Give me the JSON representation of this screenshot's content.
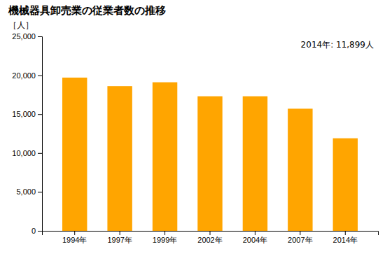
{
  "chart_data": {
    "type": "bar",
    "title": "機械器具卸売業の従業者数の推移",
    "ylabel": "［人］",
    "annotation": "2014年: 11,899人",
    "categories": [
      "1994年",
      "1997年",
      "1999年",
      "2002年",
      "2004年",
      "2007年",
      "2014年"
    ],
    "values": [
      19700,
      18600,
      19100,
      17300,
      17300,
      15700,
      11899
    ],
    "color": "#FFA500",
    "ylim": [
      0,
      25000
    ],
    "yticks": [
      0,
      {
        "value": 5000,
        "label": "5,000"
      },
      {
        "value": 10000,
        "label": "10,000"
      },
      {
        "value": 15000,
        "label": "15,000"
      },
      {
        "value": 20000,
        "label": "20,000"
      },
      {
        "value": 25000,
        "label": "25,000"
      }
    ],
    "grid": false
  }
}
